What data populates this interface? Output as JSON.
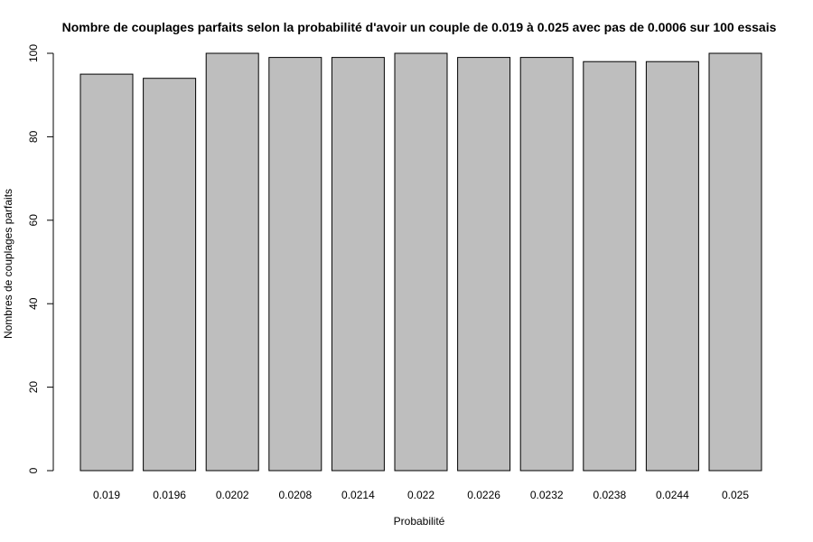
{
  "chart_data": {
    "type": "bar",
    "title": "Nombre de couplages parfaits selon la probabilité d'avoir un couple de 0.019 à 0.025 avec pas de 0.0006 sur 100 essais",
    "xlabel": "Probabilité",
    "ylabel": "Nombres de couplages parfaits",
    "categories": [
      "0.019",
      "0.0196",
      "0.0202",
      "0.0208",
      "0.0214",
      "0.022",
      "0.0226",
      "0.0232",
      "0.0238",
      "0.0244",
      "0.025"
    ],
    "values": [
      95,
      94,
      100,
      99,
      99,
      100,
      99,
      99,
      98,
      98,
      100
    ],
    "ylim": [
      0,
      100
    ],
    "yticks": [
      "0",
      "20",
      "40",
      "60",
      "80",
      "100"
    ],
    "bar_color": "#bebebe",
    "grid": false
  }
}
